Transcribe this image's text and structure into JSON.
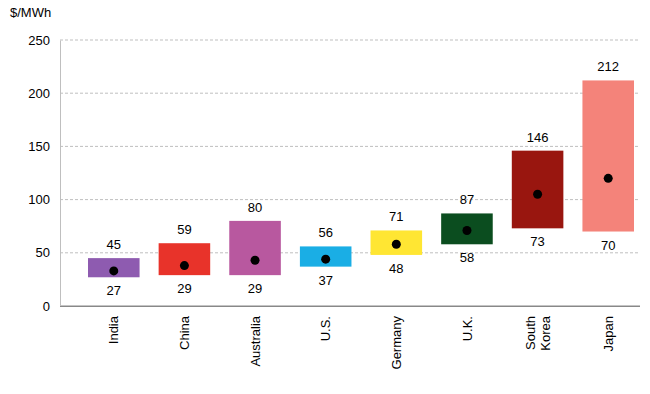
{
  "chart_data": {
    "type": "range_bar",
    "ylabel": "$/MWh",
    "categories": [
      "India",
      "China",
      "Australia",
      "U.S.",
      "Germany",
      "U.K.",
      "South Korea",
      "Japan"
    ],
    "low": [
      27,
      29,
      29,
      37,
      48,
      58,
      73,
      70
    ],
    "high": [
      45,
      59,
      80,
      56,
      71,
      87,
      146,
      212
    ],
    "mid": [
      33,
      38,
      43,
      44,
      58,
      71,
      105,
      120
    ],
    "colors": [
      "#8e5bb0",
      "#e8332a",
      "#b8589f",
      "#1aaee5",
      "#ffe633",
      "#0b4d1f",
      "#99160f",
      "#f4837a"
    ],
    "marker": "circle",
    "data_labels": true,
    "ylim": [
      0,
      250
    ],
    "yticks": [
      0,
      50,
      100,
      150,
      200,
      250
    ],
    "grid": true
  }
}
